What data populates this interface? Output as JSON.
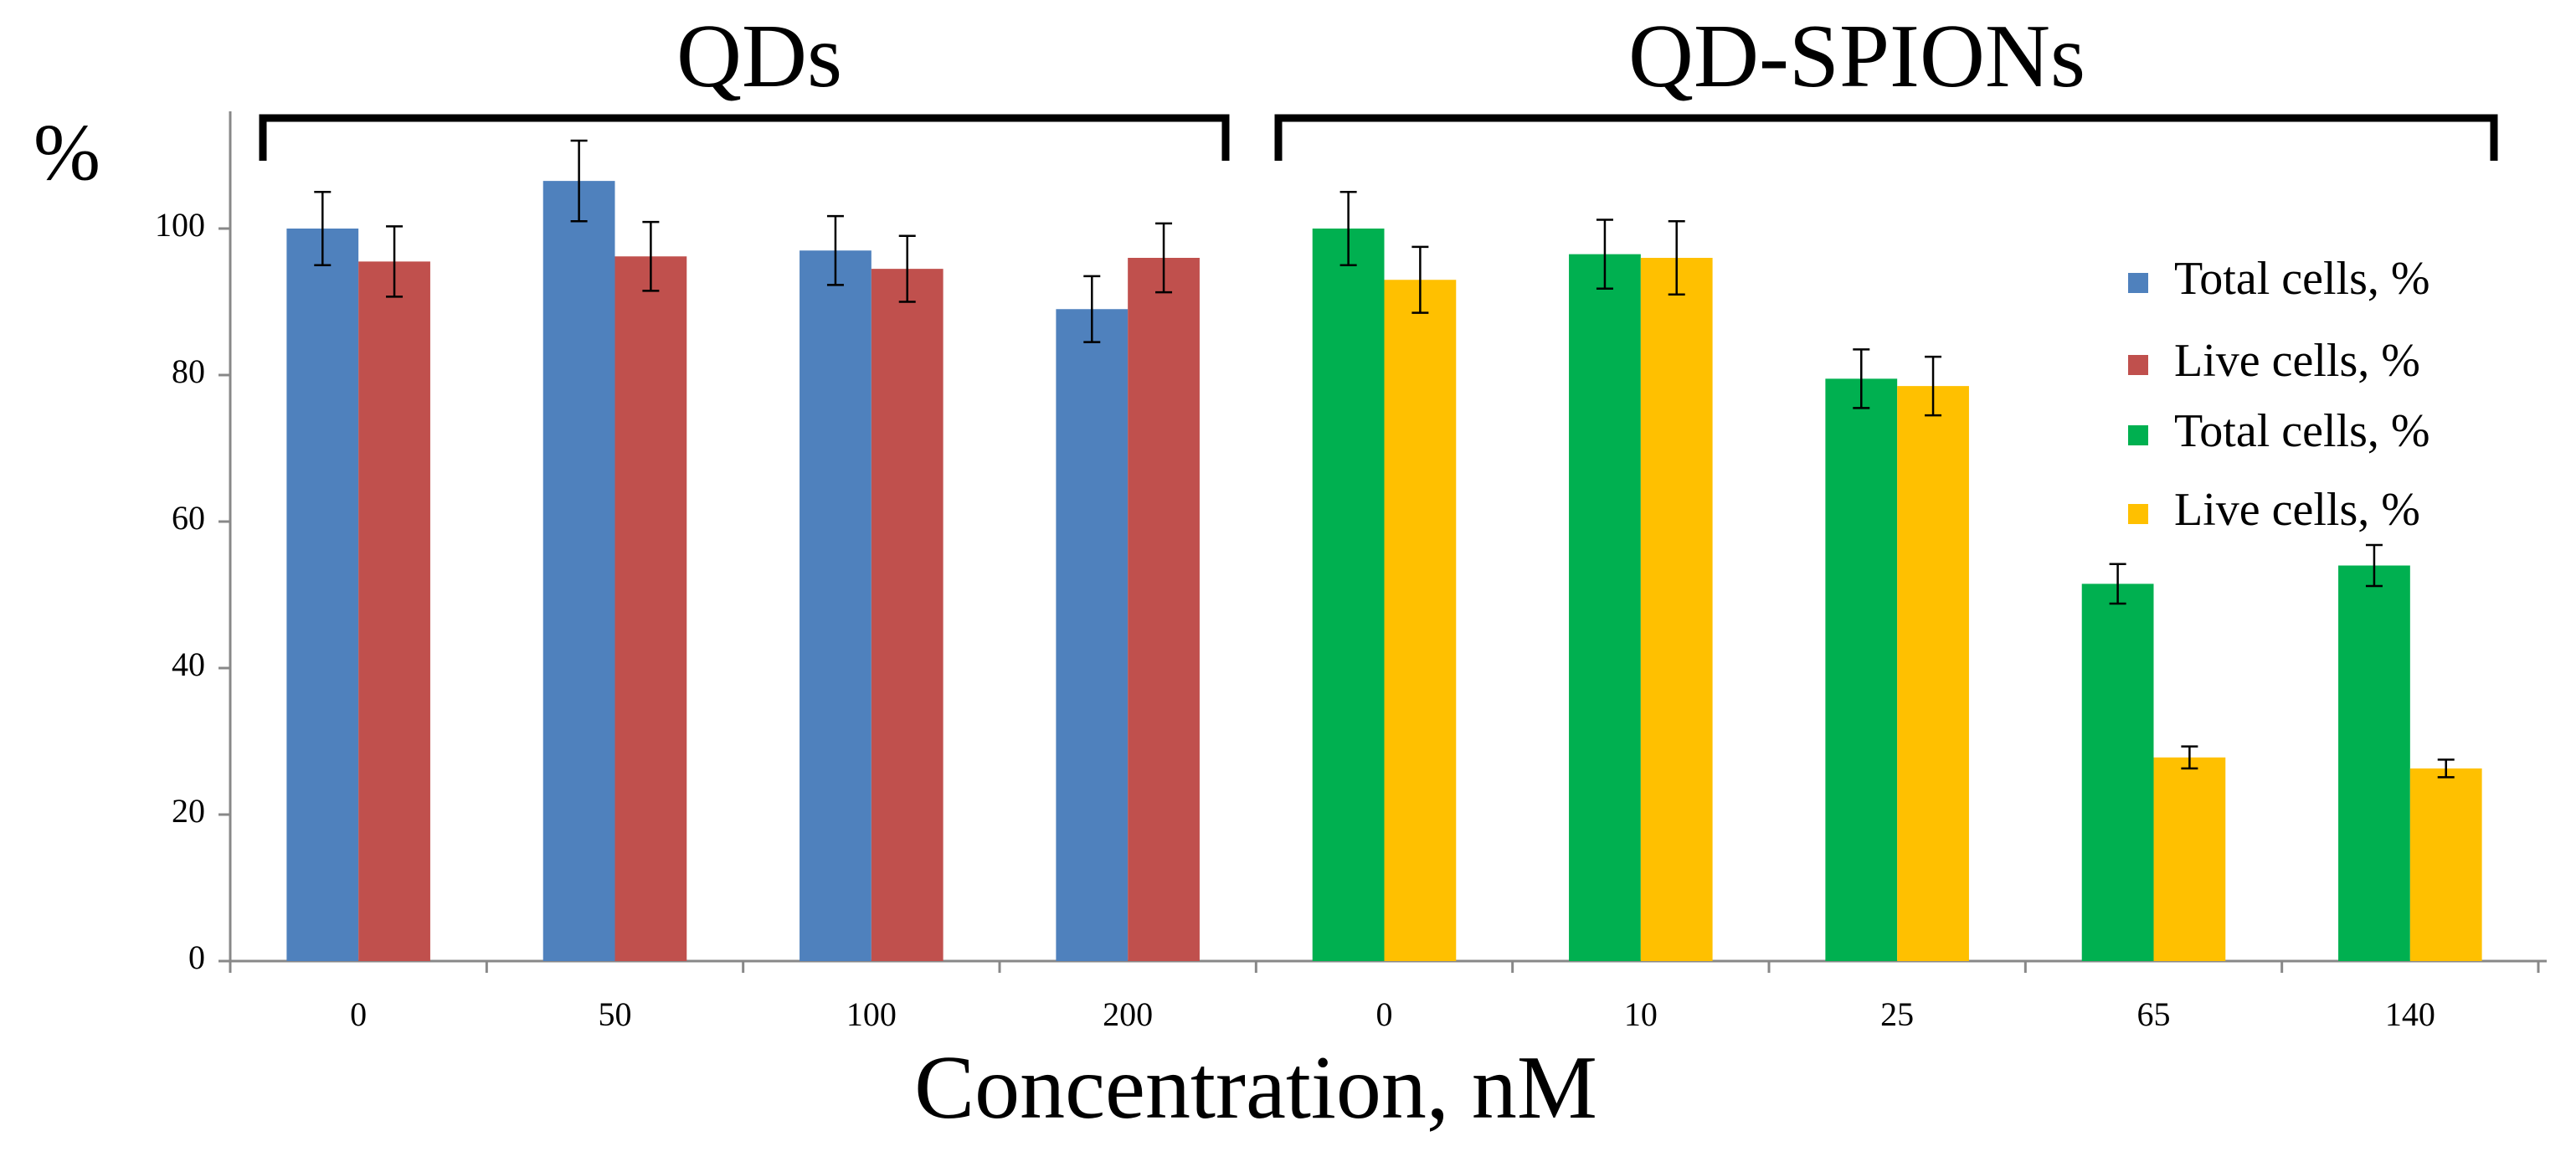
{
  "chart_data": {
    "type": "bar",
    "annotations": [
      "QDs",
      "QD-SPIONs"
    ],
    "y_label": "%",
    "x_label": "Concentration, nM",
    "categories": [
      "0",
      "50",
      "100",
      "200",
      "0",
      "10",
      "25",
      "65",
      "140"
    ],
    "series": [
      {
        "name": "Total cells, %",
        "color": "#4f81bd",
        "values": [
          100,
          106.5,
          97,
          89,
          null,
          null,
          null,
          null,
          null
        ],
        "errors": [
          5,
          5.5,
          4.7,
          4.5,
          null,
          null,
          null,
          null,
          null
        ]
      },
      {
        "name": "Live cells, %",
        "color": "#c0504d",
        "values": [
          95.5,
          96.2,
          94.5,
          96,
          null,
          null,
          null,
          null,
          null
        ],
        "errors": [
          4.8,
          4.7,
          4.5,
          4.7,
          null,
          null,
          null,
          null,
          null
        ]
      },
      {
        "name": "Total cells, %",
        "color": "#00b050",
        "values": [
          null,
          null,
          null,
          null,
          100,
          96.5,
          79.5,
          51.5,
          54
        ],
        "errors": [
          null,
          null,
          null,
          null,
          5,
          4.7,
          4,
          2.7,
          2.8
        ]
      },
      {
        "name": "Live cells, %",
        "color": "#ffc000",
        "values": [
          null,
          null,
          null,
          null,
          93,
          96,
          78.5,
          27.8,
          26.3
        ],
        "errors": [
          null,
          null,
          null,
          null,
          4.5,
          5,
          4,
          1.5,
          1.2
        ]
      }
    ],
    "ylim": [
      0,
      116
    ],
    "yticks": [
      0,
      20,
      40,
      60,
      80,
      100
    ],
    "grid": false,
    "legend": "right"
  }
}
